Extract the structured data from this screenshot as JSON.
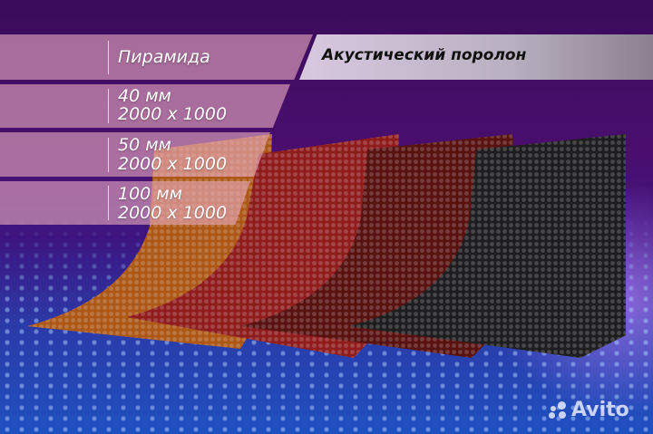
{
  "header": {
    "type_label": "Пирамида",
    "product_title": "Акустический поролон"
  },
  "sizes": [
    {
      "thickness": "40 мм",
      "dimensions": "2000 x 1000"
    },
    {
      "thickness": "50 мм",
      "dimensions": "2000 x 1000"
    },
    {
      "thickness": "100 мм",
      "dimensions": "2000 x 1000"
    }
  ],
  "foam_colors": [
    "#f07a20",
    "#c8282a",
    "#7a1a18",
    "#2a2a2c"
  ],
  "watermark": "Avito"
}
